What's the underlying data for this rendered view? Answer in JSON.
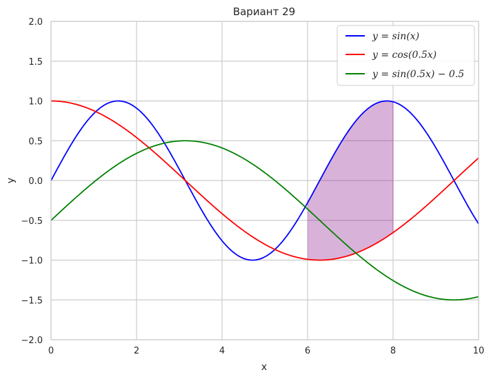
{
  "chart_data": {
    "type": "line",
    "title": "Вариант 29",
    "xlabel": "x",
    "ylabel": "y",
    "xlim": [
      0,
      10
    ],
    "ylim": [
      -2.0,
      2.0
    ],
    "xticks": [
      "0",
      "2",
      "4",
      "6",
      "8",
      "10"
    ],
    "yticks": [
      "−2.0",
      "−1.5",
      "−1.0",
      "−0.5",
      "0.0",
      "0.5",
      "1.0",
      "1.5",
      "2.0"
    ],
    "grid": true,
    "legend_position": "top-right",
    "series": [
      {
        "name": "y = sin(x)",
        "expr": "sin(x)",
        "color": "#0000ff",
        "x": [
          0,
          0.5,
          1,
          1.5708,
          2,
          2.5,
          3,
          3.5,
          4,
          4.7124,
          5,
          5.5,
          6,
          6.5,
          7,
          7.854,
          8,
          8.5,
          9,
          9.5,
          10
        ],
        "y": [
          0,
          0.479,
          0.841,
          1.0,
          0.909,
          0.598,
          0.141,
          -0.351,
          -0.757,
          -1.0,
          -0.959,
          -0.706,
          -0.279,
          0.215,
          0.657,
          1.0,
          0.989,
          0.798,
          0.412,
          -0.075,
          -0.544
        ]
      },
      {
        "name": "y = cos(0.5x)",
        "expr": "cos(0.5x)",
        "color": "#ff0000",
        "x": [
          0,
          1,
          2,
          3,
          4,
          5,
          6,
          6.2832,
          7,
          8,
          9,
          10
        ],
        "y": [
          1.0,
          0.878,
          0.54,
          0.071,
          -0.416,
          -0.801,
          -0.99,
          -1.0,
          -0.936,
          -0.654,
          -0.211,
          0.284
        ]
      },
      {
        "name": "y = sin(0.5x) − 0.5",
        "expr": "sin(0.5x) - 0.5",
        "color": "#008000",
        "x": [
          0,
          1,
          2,
          3.1416,
          4,
          5,
          6,
          7,
          8,
          9,
          9.4248,
          10
        ],
        "y": [
          -0.5,
          -0.021,
          0.341,
          0.5,
          0.409,
          0.098,
          -0.359,
          -0.851,
          -1.257,
          -1.478,
          -1.5,
          -1.459
        ]
      }
    ],
    "fill_between": {
      "upper": "y = sin(x)",
      "lower": "y = cos(0.5x)",
      "x_from": 6.0,
      "x_to": 8.0,
      "color": "#800080",
      "alpha": 0.3
    },
    "vertical_marker_x": 8
  },
  "legend": {
    "items": [
      {
        "label": "y = sin(x)",
        "color": "#0000ff"
      },
      {
        "label": "y = cos(0.5x)",
        "color": "#ff0000"
      },
      {
        "label": "y = sin(0.5x) − 0.5",
        "color": "#008000"
      }
    ]
  }
}
